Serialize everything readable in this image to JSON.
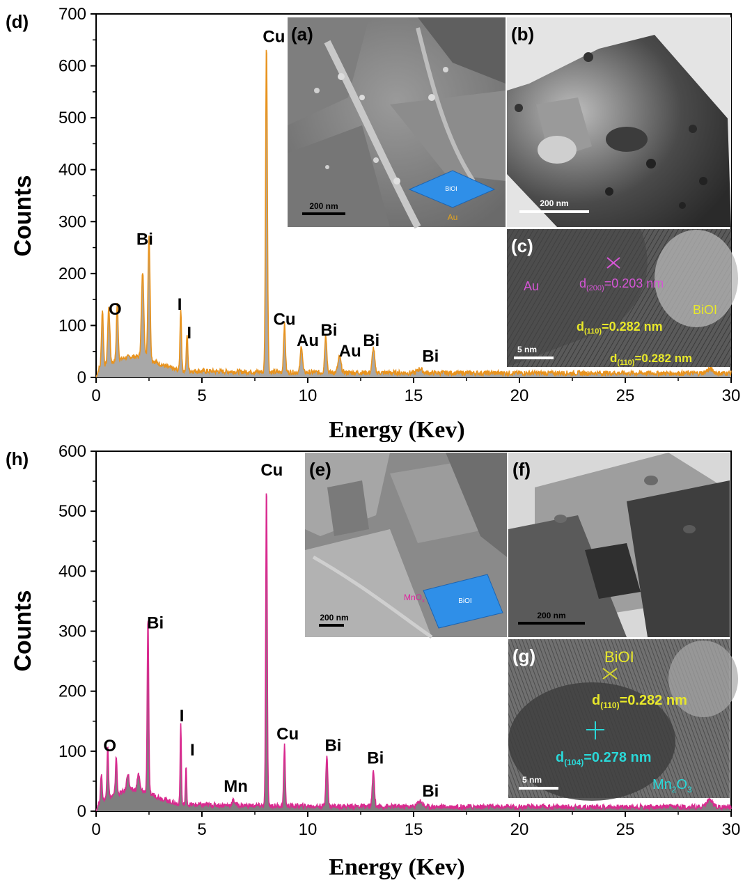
{
  "chart_data": [
    {
      "panel_label": "(d)",
      "type": "area",
      "title": "",
      "xlabel": "Energy (Kev)",
      "ylabel": "Counts",
      "xlim": [
        0,
        30
      ],
      "ylim": [
        0,
        700
      ],
      "xticks": [
        0,
        5,
        10,
        15,
        20,
        25,
        30
      ],
      "yticks": [
        0,
        100,
        200,
        300,
        400,
        500,
        600,
        700
      ],
      "line_color": "#e8931e",
      "fill_color": "#a8a8a8",
      "baseline": 8,
      "peaks": [
        {
          "x": 0.3,
          "y": 110,
          "w": 0.06
        },
        {
          "x": 0.6,
          "y": 108,
          "w": 0.07
        },
        {
          "x": 1.0,
          "y": 108,
          "w": 0.06
        },
        {
          "x": 2.2,
          "y": 165,
          "w": 0.08
        },
        {
          "x": 2.5,
          "y": 240,
          "w": 0.07
        },
        {
          "x": 4.0,
          "y": 120,
          "w": 0.05
        },
        {
          "x": 4.3,
          "y": 70,
          "w": 0.05
        },
        {
          "x": 8.05,
          "y": 635,
          "w": 0.06
        },
        {
          "x": 8.9,
          "y": 92,
          "w": 0.06
        },
        {
          "x": 9.7,
          "y": 52,
          "w": 0.07
        },
        {
          "x": 10.85,
          "y": 72,
          "w": 0.07
        },
        {
          "x": 11.5,
          "y": 30,
          "w": 0.1
        },
        {
          "x": 13.1,
          "y": 48,
          "w": 0.08
        },
        {
          "x": 15.3,
          "y": 8,
          "w": 0.15
        },
        {
          "x": 29.0,
          "y": 8,
          "w": 0.2
        }
      ],
      "annotations": [
        {
          "text": "O",
          "x": 0.9,
          "y": 115
        },
        {
          "text": "Bi",
          "x": 2.3,
          "y": 250
        },
        {
          "text": "I",
          "x": 3.95,
          "y": 125
        },
        {
          "text": "I",
          "x": 4.4,
          "y": 70
        },
        {
          "text": "Cu",
          "x": 8.4,
          "y": 640
        },
        {
          "text": "Cu",
          "x": 8.9,
          "y": 96
        },
        {
          "text": "Au",
          "x": 10.0,
          "y": 55
        },
        {
          "text": "Bi",
          "x": 11.0,
          "y": 75
        },
        {
          "text": "Au",
          "x": 12.0,
          "y": 35
        },
        {
          "text": "Bi",
          "x": 13.0,
          "y": 55
        },
        {
          "text": "Bi",
          "x": 15.8,
          "y": 25
        }
      ]
    },
    {
      "panel_label": "(h)",
      "type": "area",
      "title": "",
      "xlabel": "Energy (Kev)",
      "ylabel": "Counts",
      "xlim": [
        0,
        30
      ],
      "ylim": [
        0,
        600
      ],
      "xticks": [
        0,
        5,
        10,
        15,
        20,
        25,
        30
      ],
      "yticks": [
        0,
        100,
        200,
        300,
        400,
        500,
        600
      ],
      "line_color": "#d92a8f",
      "fill_color": "#7f7f7f",
      "baseline": 7,
      "peaks": [
        {
          "x": 0.25,
          "y": 45,
          "w": 0.05
        },
        {
          "x": 0.55,
          "y": 90,
          "w": 0.05
        },
        {
          "x": 0.95,
          "y": 65,
          "w": 0.05
        },
        {
          "x": 1.5,
          "y": 30,
          "w": 0.08
        },
        {
          "x": 2.0,
          "y": 28,
          "w": 0.08
        },
        {
          "x": 2.45,
          "y": 295,
          "w": 0.05
        },
        {
          "x": 4.0,
          "y": 138,
          "w": 0.04
        },
        {
          "x": 4.25,
          "y": 62,
          "w": 0.04
        },
        {
          "x": 6.5,
          "y": 8,
          "w": 0.1
        },
        {
          "x": 8.05,
          "y": 540,
          "w": 0.05
        },
        {
          "x": 8.9,
          "y": 100,
          "w": 0.05
        },
        {
          "x": 10.9,
          "y": 88,
          "w": 0.06
        },
        {
          "x": 13.1,
          "y": 58,
          "w": 0.07
        },
        {
          "x": 15.3,
          "y": 10,
          "w": 0.15
        },
        {
          "x": 29.0,
          "y": 12,
          "w": 0.2
        }
      ],
      "annotations": [
        {
          "text": "O",
          "x": 0.65,
          "y": 95
        },
        {
          "text": "Bi",
          "x": 2.8,
          "y": 300
        },
        {
          "text": "I",
          "x": 4.05,
          "y": 145
        },
        {
          "text": "I",
          "x": 4.55,
          "y": 88
        },
        {
          "text": "Mn",
          "x": 6.6,
          "y": 28
        },
        {
          "text": "Cu",
          "x": 8.3,
          "y": 555
        },
        {
          "text": "Cu",
          "x": 9.05,
          "y": 115
        },
        {
          "text": "Bi",
          "x": 11.2,
          "y": 96
        },
        {
          "text": "Bi",
          "x": 13.2,
          "y": 75
        },
        {
          "text": "Bi",
          "x": 15.8,
          "y": 20
        }
      ]
    }
  ],
  "insets": {
    "a": {
      "label": "(a)",
      "scale": "200 nm",
      "schematic_label": "BiOI",
      "particle_label": "Au"
    },
    "b": {
      "label": "(b)",
      "scale": "200 nm"
    },
    "c": {
      "label": "(c)",
      "scale": "5 nm",
      "au_label": "Au",
      "biol_label": "BiOI",
      "d200": "d",
      "d200_sub": "(200)",
      "d200_val": "=0.203 nm",
      "d110a": "d",
      "d110a_sub": "(110)",
      "d110a_val": "=0.282 nm",
      "d110b": "d",
      "d110b_sub": "(110)",
      "d110b_val": "=0.282 nm"
    },
    "e": {
      "label": "(e)",
      "scale": "200 nm",
      "schematic_label": "BiOI",
      "mno_label": "MnO",
      "mno_sub": "x"
    },
    "f": {
      "label": "(f)",
      "scale": "200 nm"
    },
    "g": {
      "label": "(g)",
      "scale": "5 nm",
      "biol_label": "BiOI",
      "d110": "d",
      "d110_sub": "(110)",
      "d110_val": "=0.282 nm",
      "d104": "d",
      "d104_sub": "(104)",
      "d104_val": "=0.278 nm",
      "mn2o3": "Mn",
      "mn2o3_sub1": "2",
      "mn2o3_mid": "O",
      "mn2o3_sub2": "3"
    }
  }
}
